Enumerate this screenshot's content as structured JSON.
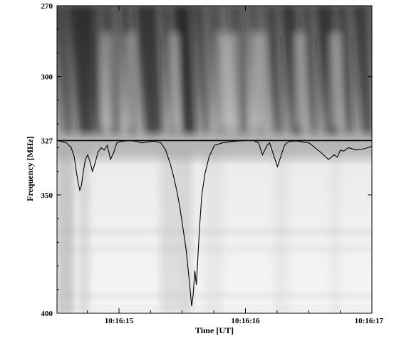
{
  "chart_data": {
    "type": "heatmap",
    "xlabel": "Time [UT]",
    "ylabel": "Frequency  [MHz]",
    "x_ticks": [
      "10:16:15",
      "10:16:16",
      "10:16:17"
    ],
    "y_ticks": [
      270,
      300,
      327,
      350,
      400
    ],
    "ylim": [
      270,
      400
    ],
    "y_inverted": true,
    "grayscale": true,
    "horizontal_line_mhz": 327,
    "profile_baseline_mhz": 327,
    "profile": {
      "description_units": "t in seconds since 10:16:14.25, f in MHz",
      "t": [
        0.0,
        0.06,
        0.12,
        0.18,
        0.22,
        0.25,
        0.27,
        0.29,
        0.31,
        0.33,
        0.36,
        0.39,
        0.42,
        0.45,
        0.48,
        0.52,
        0.56,
        0.6,
        0.64,
        0.68,
        0.72,
        0.76,
        0.8,
        0.86,
        0.92,
        1.0,
        1.08,
        1.16,
        1.24,
        1.32,
        1.38,
        1.44,
        1.48,
        1.52,
        1.56,
        1.6,
        1.64,
        1.68,
        1.71,
        1.73,
        1.75,
        1.77,
        1.79,
        1.81,
        1.84,
        1.88,
        1.93,
        2.0,
        2.1,
        2.2,
        2.3,
        2.4,
        2.5,
        2.56,
        2.61,
        2.64,
        2.67,
        2.7,
        2.75,
        2.8,
        2.85,
        2.89,
        2.92,
        2.96,
        3.05,
        3.2,
        3.35,
        3.45,
        3.52,
        3.56,
        3.6,
        3.64,
        3.7,
        3.8,
        3.9,
        4.0
      ],
      "f": [
        327,
        327.4,
        328,
        330,
        334,
        341,
        345,
        348,
        346,
        341,
        335,
        333,
        336,
        340,
        337,
        332,
        330,
        331,
        329,
        335,
        332,
        328,
        327.5,
        327.2,
        327,
        327.3,
        328,
        327.5,
        327.3,
        328,
        331,
        337,
        342,
        348,
        355,
        364,
        373,
        386,
        397,
        392,
        382,
        388,
        376,
        364,
        350,
        341,
        334,
        329,
        328,
        327.5,
        327.2,
        327,
        327,
        328,
        333,
        331,
        329,
        328,
        333,
        338,
        333,
        329,
        328,
        327.3,
        327.2,
        328,
        332,
        335,
        333,
        334,
        331,
        331.5,
        330,
        331,
        330.5,
        329.5
      ]
    }
  }
}
